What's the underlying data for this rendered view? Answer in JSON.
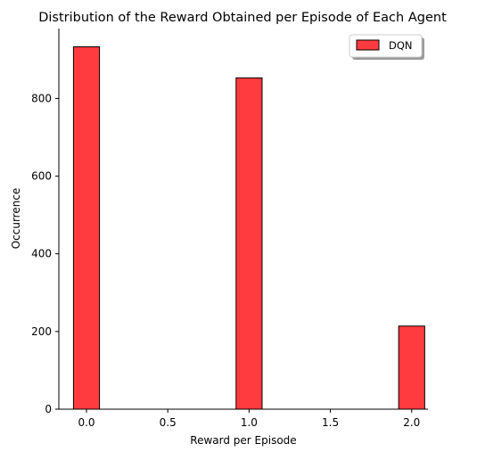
{
  "chart_data": {
    "type": "bar",
    "title": "Distribution of the Reward Obtained per Episode of Each Agent",
    "xlabel": "Reward per Episode",
    "ylabel": "Occurrence",
    "xlim": [
      -0.17,
      2.1
    ],
    "ylim": [
      0,
      980
    ],
    "x_ticks": [
      0.0,
      0.5,
      1.0,
      1.5,
      2.0
    ],
    "x_tick_labels": [
      "0.0",
      "0.5",
      "1.0",
      "1.5",
      "2.0"
    ],
    "y_ticks": [
      0,
      200,
      400,
      600,
      800
    ],
    "y_tick_labels": [
      "0",
      "200",
      "400",
      "600",
      "800"
    ],
    "bar_width": 0.16,
    "grid": false,
    "legend_position": "top-right",
    "series": [
      {
        "name": "DQN",
        "color": "#ff3b3f",
        "edge_color": "#000000",
        "bins": [
          {
            "x": 0.0,
            "value": 933
          },
          {
            "x": 1.0,
            "value": 853
          },
          {
            "x": 2.0,
            "value": 214
          }
        ]
      }
    ]
  }
}
